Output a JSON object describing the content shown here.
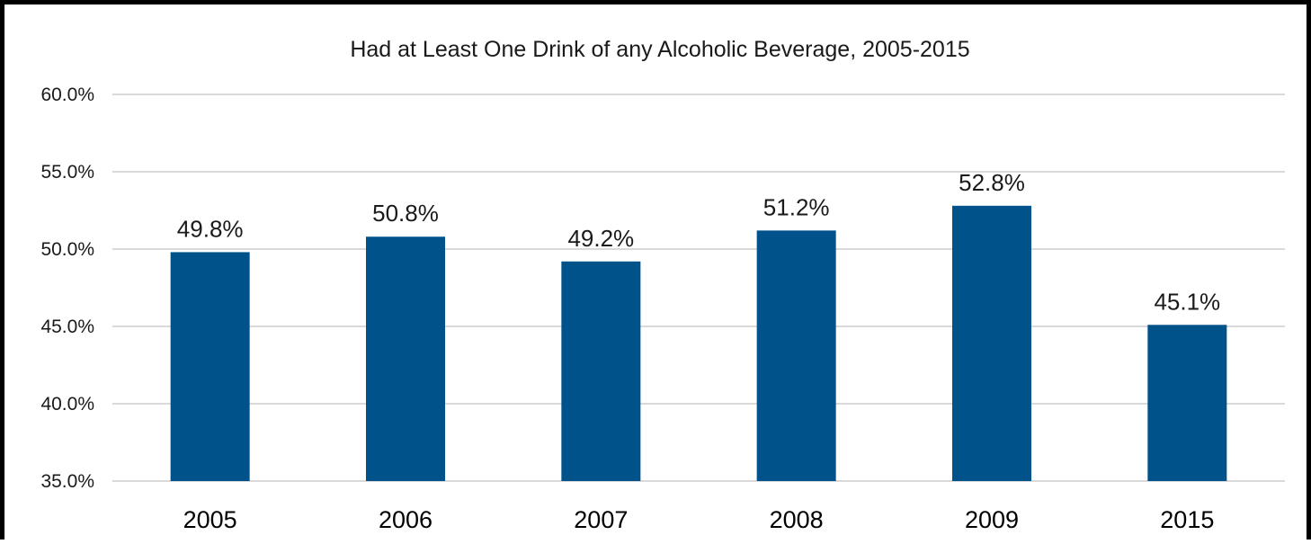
{
  "chart_data": {
    "type": "bar",
    "title": "Had at Least One Drink of any Alcoholic Beverage, 2005-2015",
    "xlabel": "",
    "ylabel": "",
    "categories": [
      "2005",
      "2006",
      "2007",
      "2008",
      "2009",
      "2015"
    ],
    "values": [
      49.8,
      50.8,
      49.2,
      51.2,
      52.8,
      45.1
    ],
    "data_labels": [
      "49.8%",
      "50.8%",
      "49.2%",
      "51.2%",
      "52.8%",
      "45.1%"
    ],
    "ylim": [
      35.0,
      60.0
    ],
    "yticks": [
      35.0,
      40.0,
      45.0,
      50.0,
      55.0,
      60.0
    ],
    "ytick_labels": [
      "35.0%",
      "40.0%",
      "45.0%",
      "50.0%",
      "55.0%",
      "60.0%"
    ],
    "grid": true,
    "legend": "none",
    "bar_color": "#00538a",
    "grid_color": "#d9d9d9"
  }
}
